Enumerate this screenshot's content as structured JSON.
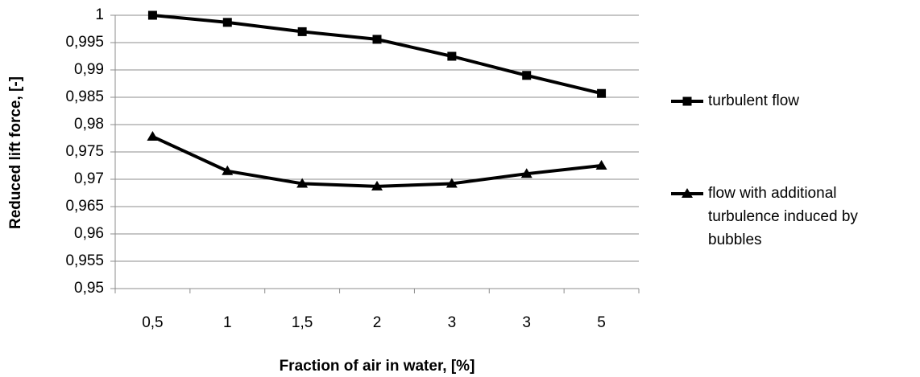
{
  "chart_data": {
    "type": "line",
    "xlabel": "Fraction of air in water, [%]",
    "ylabel": "Reduced lift force, [-]",
    "categories": [
      "0,5",
      "1",
      "1,5",
      "2",
      "3",
      "3",
      "5"
    ],
    "series": [
      {
        "name": "turbulent flow",
        "color": "#000000",
        "marker": "square",
        "values": [
          1,
          0.9987,
          0.997,
          0.9956,
          0.9925,
          0.989,
          0.9857
        ]
      },
      {
        "name": "flow with additional turbulence induced by bubbles",
        "color": "#000000",
        "marker": "triangle",
        "values": [
          0.9778,
          0.9715,
          0.9692,
          0.9687,
          0.9692,
          0.971,
          0.9725
        ]
      }
    ],
    "ylim": [
      0.95,
      1
    ],
    "yticks": [
      {
        "value": 0.95,
        "label": "0,95"
      },
      {
        "value": 0.955,
        "label": "0,955"
      },
      {
        "value": 0.96,
        "label": "0,96"
      },
      {
        "value": 0.965,
        "label": "0,965"
      },
      {
        "value": 0.97,
        "label": "0,97"
      },
      {
        "value": 0.975,
        "label": "0,975"
      },
      {
        "value": 0.98,
        "label": "0,98"
      },
      {
        "value": 0.985,
        "label": "0,985"
      },
      {
        "value": 0.99,
        "label": "0,99"
      },
      {
        "value": 0.995,
        "label": "0,995"
      },
      1
    ],
    "grid": true,
    "legend": "right"
  }
}
